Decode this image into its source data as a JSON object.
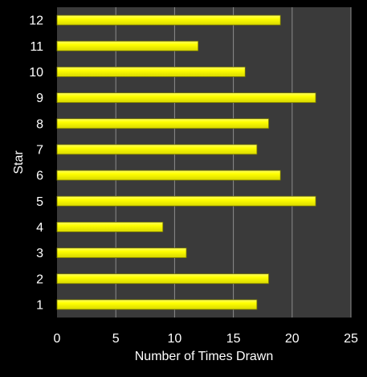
{
  "chart_data": {
    "type": "bar",
    "orientation": "horizontal",
    "title": "",
    "xlabel": "Number of Times Drawn",
    "ylabel": "Star",
    "categories": [
      "1",
      "2",
      "3",
      "4",
      "5",
      "6",
      "7",
      "8",
      "9",
      "10",
      "11",
      "12"
    ],
    "values": [
      17,
      18,
      11,
      9,
      22,
      19,
      17,
      18,
      22,
      16,
      12,
      19
    ],
    "xlim": [
      0,
      25
    ],
    "xticks": [
      "0",
      "5",
      "10",
      "15",
      "20",
      "25"
    ],
    "grid": "vertical",
    "legend": "none",
    "colors": {
      "background": "#000000",
      "plot_background": "#3a3a3a",
      "bar_fill": "#ffff00",
      "bar_stroke": "#7a7a00",
      "gridline": "#8c8c8c",
      "text": "#ffffff"
    }
  }
}
